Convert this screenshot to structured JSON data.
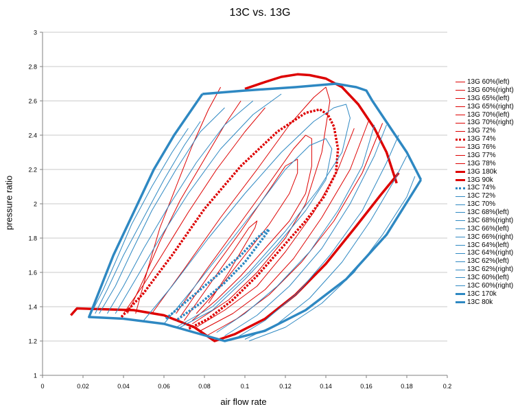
{
  "chart_data": {
    "type": "line",
    "title": "13C vs. 13G",
    "xlabel": "air flow rate",
    "ylabel": "pressure ratio",
    "xlim": [
      0,
      0.2
    ],
    "ylim": [
      1,
      3
    ],
    "xticks": [
      "0",
      "0.02",
      "0.04",
      "0.06",
      "0.08",
      "0.1",
      "0.12",
      "0.14",
      "0.16",
      "0.18",
      "0.2"
    ],
    "yticks": [
      "1",
      "1.2",
      "1.4",
      "1.6",
      "1.8",
      "2",
      "2.2",
      "2.4",
      "2.6",
      "2.8",
      "3"
    ],
    "grid": "horizontal",
    "legend_position": "right",
    "colors": {
      "red": "#dd0000",
      "blue": "#2e88c2"
    },
    "series": [
      {
        "name": "13G 60%(left)",
        "color": "#dd0000",
        "style": "thin",
        "x": [
          0.046,
          0.052,
          0.058,
          0.066,
          0.074,
          0.082,
          0.088
        ],
        "y": [
          1.36,
          1.62,
          1.86,
          2.1,
          2.34,
          2.55,
          2.68
        ]
      },
      {
        "name": "13G 60%(right)",
        "color": "#dd0000",
        "style": "thin",
        "x": [
          0.081,
          0.096,
          0.112,
          0.128,
          0.144,
          0.158,
          0.168
        ],
        "y": [
          1.23,
          1.33,
          1.47,
          1.66,
          1.9,
          2.18,
          2.47
        ]
      },
      {
        "name": "13G 65%(left)",
        "color": "#dd0000",
        "style": "thin",
        "x": [
          0.042,
          0.05,
          0.058,
          0.068,
          0.08,
          0.09,
          0.098
        ],
        "y": [
          1.36,
          1.56,
          1.78,
          2.02,
          2.26,
          2.46,
          2.6
        ]
      },
      {
        "name": "13G 65%(right)",
        "color": "#dd0000",
        "style": "thin",
        "x": [
          0.078,
          0.094,
          0.11,
          0.124,
          0.138,
          0.152,
          0.161
        ],
        "y": [
          1.26,
          1.36,
          1.5,
          1.68,
          1.92,
          2.2,
          2.48
        ]
      },
      {
        "name": "13G 70%(left)",
        "color": "#dd0000",
        "style": "thin",
        "x": [
          0.04,
          0.05,
          0.06,
          0.072,
          0.086,
          0.1,
          0.11
        ],
        "y": [
          1.36,
          1.53,
          1.72,
          1.95,
          2.2,
          2.42,
          2.56
        ]
      },
      {
        "name": "13G 70%(right)",
        "color": "#dd0000",
        "style": "thin",
        "x": [
          0.076,
          0.09,
          0.106,
          0.12,
          0.134,
          0.146,
          0.154
        ],
        "y": [
          1.28,
          1.38,
          1.52,
          1.72,
          1.95,
          2.2,
          2.44
        ]
      },
      {
        "name": "13G 72%",
        "color": "#dd0000",
        "style": "thin",
        "x": [
          0.054,
          0.07,
          0.088,
          0.106,
          0.122,
          0.134,
          0.14,
          0.142,
          0.138,
          0.13,
          0.12,
          0.106,
          0.092,
          0.074
        ],
        "y": [
          1.36,
          1.62,
          1.92,
          2.2,
          2.46,
          2.62,
          2.68,
          2.6,
          2.3,
          2.0,
          1.8,
          1.6,
          1.44,
          1.3
        ]
      },
      {
        "name": "13G 74%",
        "color": "#dd0000",
        "style": "dotted",
        "x": [
          0.039,
          0.05,
          0.064,
          0.08,
          0.098,
          0.116,
          0.13,
          0.137,
          0.141,
          0.144,
          0.146,
          0.145,
          0.139,
          0.13,
          0.118,
          0.106,
          0.094,
          0.082,
          0.072
        ],
        "y": [
          1.34,
          1.48,
          1.7,
          1.97,
          2.22,
          2.42,
          2.53,
          2.55,
          2.52,
          2.45,
          2.32,
          2.18,
          2.04,
          1.9,
          1.74,
          1.58,
          1.44,
          1.33,
          1.27
        ]
      },
      {
        "name": "13G 76%",
        "color": "#dd0000",
        "style": "thin",
        "x": [
          0.066,
          0.08,
          0.096,
          0.112,
          0.124,
          0.13,
          0.133,
          0.133,
          0.13,
          0.122,
          0.11,
          0.098,
          0.086,
          0.074
        ],
        "y": [
          1.36,
          1.6,
          1.86,
          2.12,
          2.32,
          2.4,
          2.38,
          2.22,
          2.06,
          1.9,
          1.74,
          1.58,
          1.44,
          1.32
        ]
      },
      {
        "name": "13G 77%",
        "color": "#dd0000",
        "style": "thin",
        "x": [
          0.068,
          0.082,
          0.098,
          0.112,
          0.12,
          0.126,
          0.126,
          0.122,
          0.112,
          0.1,
          0.088,
          0.076
        ],
        "y": [
          1.34,
          1.58,
          1.84,
          2.08,
          2.22,
          2.26,
          2.18,
          2.06,
          1.88,
          1.7,
          1.52,
          1.36
        ]
      },
      {
        "name": "13G 78%",
        "color": "#dd0000",
        "style": "thin",
        "x": [
          0.07,
          0.082,
          0.094,
          0.102,
          0.106,
          0.105,
          0.1,
          0.092,
          0.082
        ],
        "y": [
          1.32,
          1.52,
          1.72,
          1.86,
          1.9,
          1.86,
          1.76,
          1.6,
          1.42
        ]
      },
      {
        "name": "13G 180k",
        "color": "#dd0000",
        "style": "thick",
        "x": [
          0.1,
          0.11,
          0.118,
          0.126,
          0.132,
          0.14,
          0.148,
          0.156,
          0.164,
          0.17,
          0.175
        ],
        "y": [
          2.67,
          2.71,
          2.74,
          2.755,
          2.75,
          2.73,
          2.68,
          2.58,
          2.44,
          2.3,
          2.12
        ]
      },
      {
        "name": "13G 90k",
        "color": "#dd0000",
        "style": "thick",
        "x": [
          0.014,
          0.017,
          0.045,
          0.06,
          0.075,
          0.085,
          0.095,
          0.11,
          0.125,
          0.14,
          0.155,
          0.167,
          0.176
        ],
        "y": [
          1.35,
          1.39,
          1.38,
          1.35,
          1.28,
          1.2,
          1.24,
          1.33,
          1.47,
          1.65,
          1.87,
          2.05,
          2.18
        ]
      },
      {
        "name": "13C 74%",
        "color": "#2e88c2",
        "style": "dotted",
        "x": [
          0.061,
          0.068,
          0.078,
          0.088,
          0.098,
          0.106,
          0.11,
          0.112,
          0.109,
          0.1,
          0.09,
          0.078,
          0.066
        ],
        "y": [
          1.33,
          1.4,
          1.5,
          1.6,
          1.7,
          1.8,
          1.84,
          1.85,
          1.8,
          1.66,
          1.54,
          1.42,
          1.32
        ]
      },
      {
        "name": "13C 72%",
        "color": "#2e88c2",
        "style": "thin",
        "x": [
          0.06,
          0.074,
          0.09,
          0.106,
          0.12,
          0.132,
          0.14,
          0.143,
          0.14,
          0.13,
          0.116,
          0.1,
          0.084,
          0.068
        ],
        "y": [
          1.3,
          1.5,
          1.74,
          1.98,
          2.2,
          2.34,
          2.38,
          2.32,
          2.14,
          1.96,
          1.76,
          1.56,
          1.38,
          1.28
        ]
      },
      {
        "name": "13C 70%",
        "color": "#2e88c2",
        "style": "thin",
        "x": [
          0.05,
          0.064,
          0.082,
          0.1,
          0.118,
          0.134,
          0.144,
          0.15,
          0.152,
          0.148,
          0.136,
          0.12,
          0.102,
          0.084,
          0.066
        ],
        "y": [
          1.32,
          1.52,
          1.8,
          2.06,
          2.3,
          2.48,
          2.56,
          2.58,
          2.5,
          2.3,
          2.08,
          1.84,
          1.6,
          1.4,
          1.28
        ]
      },
      {
        "name": "13C 68%(left)",
        "color": "#2e88c2",
        "style": "thin",
        "x": [
          0.036,
          0.046,
          0.058,
          0.072,
          0.088,
          0.104,
          0.118
        ],
        "y": [
          1.36,
          1.56,
          1.8,
          2.06,
          2.32,
          2.52,
          2.64
        ]
      },
      {
        "name": "13C 68%(right)",
        "color": "#2e88c2",
        "style": "thin",
        "x": [
          0.086,
          0.1,
          0.116,
          0.132,
          0.146,
          0.158,
          0.164
        ],
        "y": [
          1.25,
          1.36,
          1.52,
          1.72,
          1.96,
          2.22,
          2.46
        ]
      },
      {
        "name": "13C 66%(left)",
        "color": "#2e88c2",
        "style": "thin",
        "x": [
          0.032,
          0.04,
          0.05,
          0.062,
          0.076,
          0.09,
          0.104
        ],
        "y": [
          1.36,
          1.52,
          1.74,
          1.98,
          2.24,
          2.46,
          2.6
        ]
      },
      {
        "name": "13C 66%(right)",
        "color": "#2e88c2",
        "style": "thin",
        "x": [
          0.09,
          0.106,
          0.122,
          0.138,
          0.152,
          0.164,
          0.17
        ],
        "y": [
          1.23,
          1.35,
          1.52,
          1.74,
          2.0,
          2.28,
          2.46
        ]
      },
      {
        "name": "13C 64%(left)",
        "color": "#2e88c2",
        "style": "thin",
        "x": [
          0.028,
          0.036,
          0.044,
          0.054,
          0.066,
          0.078,
          0.09
        ],
        "y": [
          1.36,
          1.52,
          1.72,
          1.96,
          2.2,
          2.42,
          2.56
        ]
      },
      {
        "name": "13C 64%(right)",
        "color": "#2e88c2",
        "style": "thin",
        "x": [
          0.096,
          0.11,
          0.126,
          0.142,
          0.158,
          0.17,
          0.176
        ],
        "y": [
          1.22,
          1.32,
          1.48,
          1.7,
          1.96,
          2.24,
          2.4
        ]
      },
      {
        "name": "13C 62%(left)",
        "color": "#2e88c2",
        "style": "thin",
        "x": [
          0.026,
          0.032,
          0.04,
          0.05,
          0.06,
          0.07,
          0.078
        ],
        "y": [
          1.36,
          1.5,
          1.7,
          1.92,
          2.14,
          2.34,
          2.48
        ]
      },
      {
        "name": "13C 62%(right)",
        "color": "#2e88c2",
        "style": "thin",
        "x": [
          0.1,
          0.116,
          0.132,
          0.148,
          0.162,
          0.174,
          0.18
        ],
        "y": [
          1.21,
          1.3,
          1.45,
          1.66,
          1.9,
          2.14,
          2.28
        ]
      },
      {
        "name": "13C 60%(left)",
        "color": "#2e88c2",
        "style": "thin",
        "x": [
          0.024,
          0.03,
          0.036,
          0.044,
          0.054,
          0.064,
          0.072
        ],
        "y": [
          1.36,
          1.5,
          1.66,
          1.88,
          2.1,
          2.3,
          2.44
        ]
      },
      {
        "name": "13C 60%(right)",
        "color": "#2e88c2",
        "style": "thin",
        "x": [
          0.102,
          0.12,
          0.138,
          0.154,
          0.168,
          0.18,
          0.184
        ],
        "y": [
          1.2,
          1.28,
          1.42,
          1.6,
          1.82,
          2.04,
          2.16
        ]
      },
      {
        "name": "13C 170k",
        "color": "#2e88c2",
        "style": "thick",
        "x": [
          0.079,
          0.1,
          0.125,
          0.145,
          0.155,
          0.16,
          0.163,
          0.18,
          0.187
        ],
        "y": [
          2.64,
          2.66,
          2.68,
          2.7,
          2.68,
          2.66,
          2.6,
          2.3,
          2.14
        ]
      },
      {
        "name": "13C 80k",
        "color": "#2e88c2",
        "style": "thick",
        "x": [
          0.079,
          0.065,
          0.055,
          0.045,
          0.035,
          0.03,
          0.024,
          0.023,
          0.04,
          0.06,
          0.075,
          0.09,
          0.11,
          0.13,
          0.15,
          0.17,
          0.187
        ],
        "y": [
          2.64,
          2.4,
          2.2,
          1.95,
          1.7,
          1.55,
          1.37,
          1.34,
          1.33,
          1.3,
          1.25,
          1.2,
          1.26,
          1.38,
          1.56,
          1.82,
          2.14
        ]
      }
    ]
  }
}
